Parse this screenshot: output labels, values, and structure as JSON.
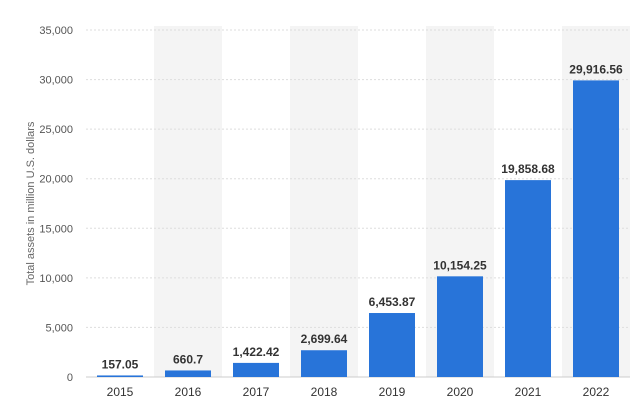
{
  "chart_data": {
    "type": "bar",
    "title": "",
    "xlabel": "",
    "ylabel": "Total assets in million U.S. dollars",
    "categories": [
      "2015",
      "2016",
      "2017",
      "2018",
      "2019",
      "2020",
      "2021",
      "2022"
    ],
    "values": [
      157.05,
      660.7,
      1422.42,
      2699.64,
      6453.87,
      10154.25,
      19858.68,
      29916.56
    ],
    "data_labels": [
      "157.05",
      "660.7",
      "1,422.42",
      "2,699.64",
      "6,453.87",
      "10,154.25",
      "19,858.68",
      "29,916.56"
    ],
    "ylim": [
      0,
      35000
    ],
    "y_ticks": [
      0,
      5000,
      10000,
      15000,
      20000,
      25000,
      30000,
      35000
    ],
    "y_tick_labels": [
      "0",
      "5,000",
      "10,000",
      "15,000",
      "20,000",
      "25,000",
      "30,000",
      "35,000"
    ],
    "grid": true,
    "bar_color": "#2874d9",
    "band_color": "#f4f4f4",
    "grid_color": "#dddddd"
  }
}
